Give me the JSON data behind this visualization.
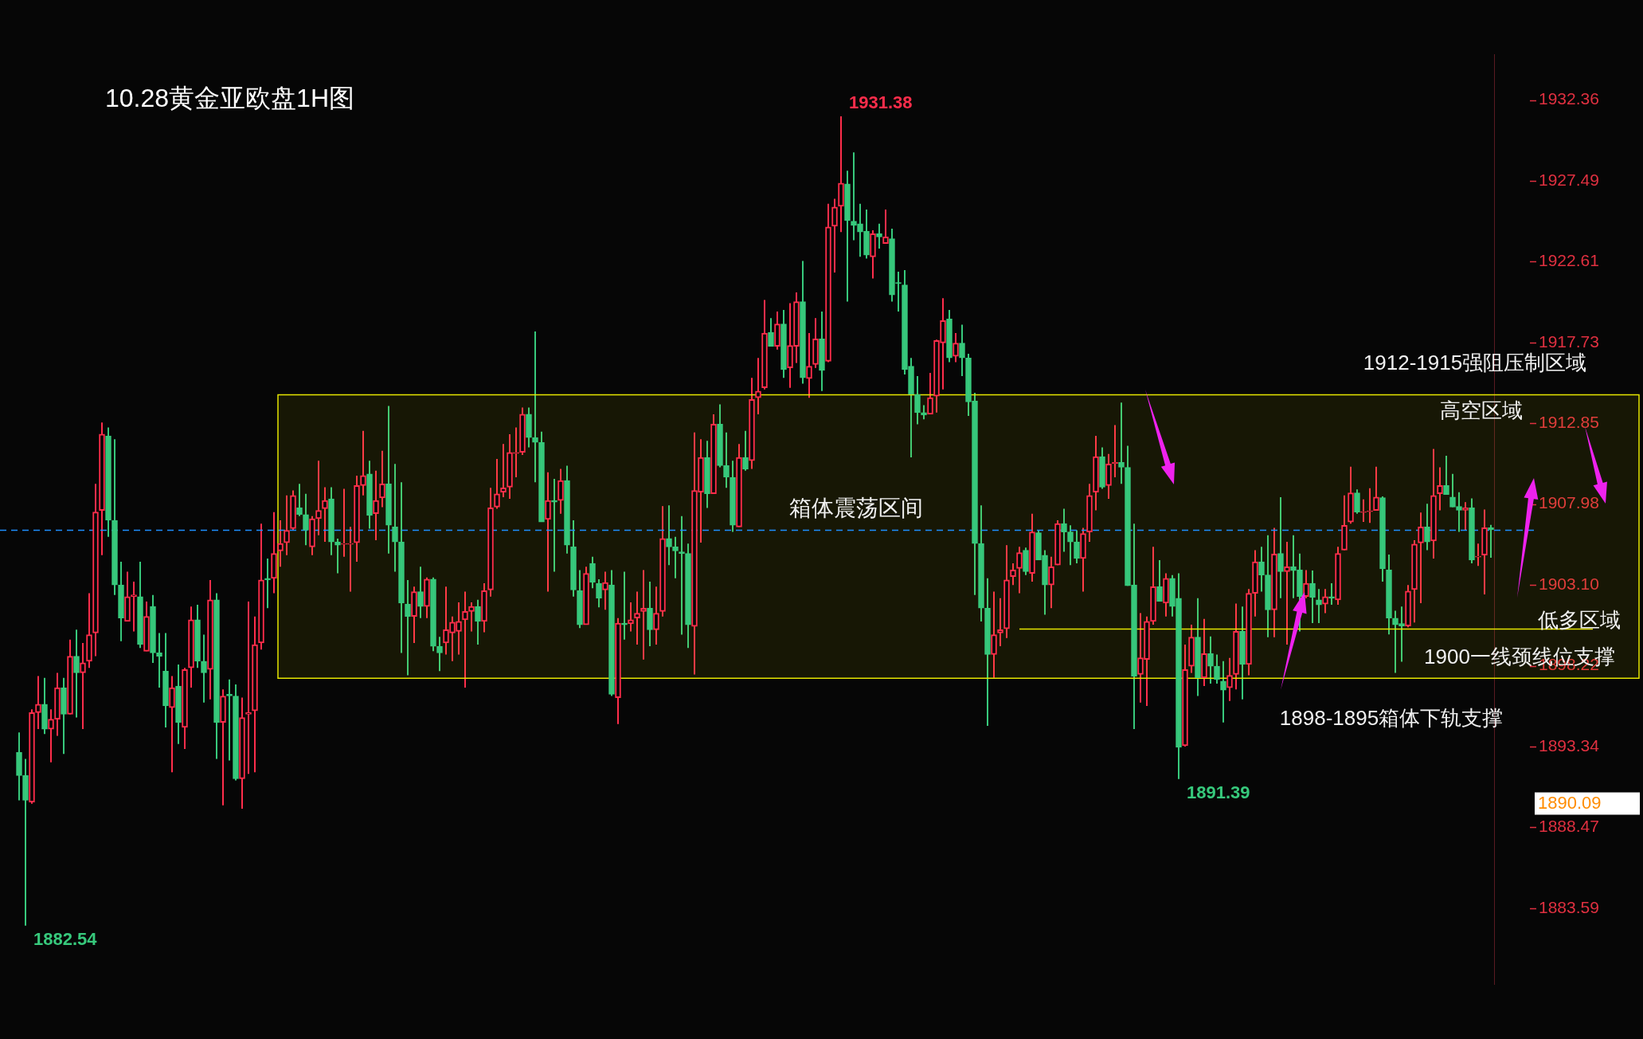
{
  "chart_data": {
    "type": "candlestick",
    "title": "10.28黄金亚欧盘1H图",
    "categories": [
      null,
      null,
      null,
      null,
      null,
      null,
      null,
      null,
      null,
      null,
      null,
      null,
      null,
      null,
      null,
      null,
      null,
      null,
      null,
      null,
      null,
      null,
      null,
      null,
      null,
      null,
      null,
      null,
      null,
      null,
      null,
      null,
      null,
      null,
      null,
      null,
      null,
      null,
      null,
      null,
      null,
      null,
      null,
      null,
      null,
      null,
      null,
      null,
      null,
      null,
      null,
      null,
      null,
      null,
      null,
      null,
      null,
      null,
      null,
      null,
      null,
      null,
      null,
      null,
      null,
      null,
      null,
      null,
      null,
      null,
      null,
      null,
      null,
      null,
      null,
      null,
      null,
      null,
      null,
      null,
      null,
      null,
      null,
      null,
      null,
      null,
      null,
      null,
      null,
      null,
      null,
      null,
      null,
      null,
      null,
      null,
      null,
      null,
      null,
      null,
      null,
      null,
      null,
      null,
      null,
      null,
      null,
      null,
      null,
      null,
      null,
      null,
      null,
      null,
      null,
      null,
      null,
      null,
      null,
      null,
      null,
      null,
      null,
      null,
      null,
      null,
      null,
      null,
      null,
      null,
      null,
      null,
      null,
      null,
      null,
      null,
      null,
      null,
      null,
      null,
      null,
      null,
      null,
      null,
      null,
      null,
      null,
      null,
      null,
      null,
      null,
      null,
      null,
      null,
      null,
      null,
      null,
      null,
      null,
      null,
      null,
      null,
      null,
      null,
      null,
      null,
      null,
      null,
      null,
      null,
      null,
      null,
      null,
      null,
      null,
      null,
      null,
      null,
      null,
      null,
      null,
      null,
      null,
      null,
      null,
      null,
      null,
      null,
      null,
      null,
      null,
      null,
      null,
      null,
      null,
      null,
      null,
      null,
      null,
      null,
      null,
      null,
      null,
      null,
      null,
      null,
      null,
      null,
      null,
      null,
      null,
      null,
      null,
      null,
      null,
      null,
      null,
      null,
      null,
      null,
      null,
      null,
      null,
      null,
      null,
      null,
      null,
      null,
      null,
      null,
      null,
      null
    ],
    "ohlc": [
      [
        1893.0,
        1894.2,
        1890.1,
        1891.6
      ],
      [
        1891.6,
        1892.6,
        1882.54,
        1890.1
      ],
      [
        1890.0,
        1895.6,
        1889.9,
        1895.4
      ],
      [
        1895.4,
        1897.6,
        1894.4,
        1895.9
      ],
      [
        1895.9,
        1897.5,
        1894.1,
        1894.4
      ],
      [
        1894.4,
        1895.6,
        1892.4,
        1895.0
      ],
      [
        1895.0,
        1897.8,
        1894.0,
        1896.9
      ],
      [
        1896.9,
        1897.5,
        1892.9,
        1895.3
      ],
      [
        1895.3,
        1899.8,
        1895.3,
        1898.8
      ],
      [
        1898.8,
        1900.4,
        1895.1,
        1897.8
      ],
      [
        1897.8,
        1899.6,
        1894.4,
        1898.4
      ],
      [
        1898.5,
        1902.6,
        1898.1,
        1900.1
      ],
      [
        1900.2,
        1909.2,
        1898.8,
        1907.5
      ],
      [
        1907.6,
        1912.9,
        1904.9,
        1912.2
      ],
      [
        1912.1,
        1912.6,
        1906.0,
        1907.0
      ],
      [
        1907.0,
        1911.9,
        1902.5,
        1903.1
      ],
      [
        1903.1,
        1904.5,
        1899.7,
        1901.1
      ],
      [
        1900.9,
        1903.9,
        1900.9,
        1902.4
      ],
      [
        1902.4,
        1903.3,
        1900.3,
        1902.5
      ],
      [
        1902.4,
        1904.5,
        1899.3,
        1899.5
      ],
      [
        1899.1,
        1902.1,
        1899.1,
        1901.2
      ],
      [
        1901.8,
        1902.5,
        1898.4,
        1899.0
      ],
      [
        1899.0,
        1900.2,
        1896.9,
        1898.8
      ],
      [
        1897.9,
        1900.2,
        1894.5,
        1895.8
      ],
      [
        1895.7,
        1897.6,
        1891.8,
        1896.9
      ],
      [
        1897.0,
        1898.3,
        1893.5,
        1894.8
      ],
      [
        1894.5,
        1898.1,
        1893.2,
        1898.0
      ],
      [
        1898.1,
        1901.8,
        1896.9,
        1901.0
      ],
      [
        1901.0,
        1901.9,
        1898.1,
        1898.5
      ],
      [
        1898.5,
        1900.1,
        1896.0,
        1897.8
      ],
      [
        1898.0,
        1903.4,
        1896.2,
        1902.2
      ],
      [
        1902.2,
        1902.6,
        1892.6,
        1894.8
      ],
      [
        1894.8,
        1896.8,
        1889.8,
        1896.4
      ],
      [
        1896.5,
        1897.4,
        1892.5,
        1896.4
      ],
      [
        1896.4,
        1897.1,
        1891.3,
        1891.4
      ],
      [
        1891.4,
        1896.3,
        1889.6,
        1895.1
      ],
      [
        1895.3,
        1902.1,
        1891.7,
        1895.4
      ],
      [
        1895.5,
        1901.2,
        1891.8,
        1899.5
      ],
      [
        1899.6,
        1906.8,
        1899.2,
        1903.4
      ],
      [
        1903.5,
        1904.7,
        1901.7,
        1903.4
      ],
      [
        1903.5,
        1907.5,
        1902.6,
        1905.0
      ],
      [
        1905.15,
        1907.0,
        1904.2,
        1905.6
      ],
      [
        1905.65,
        1908.5,
        1904.9,
        1906.4
      ],
      [
        1906.5,
        1908.8,
        1906.4,
        1908.5
      ],
      [
        1907.75,
        1909.2,
        1907.25,
        1907.35
      ],
      [
        1907.35,
        1908.6,
        1905.5,
        1906.4
      ],
      [
        1905.4,
        1907.25,
        1904.9,
        1907.1
      ],
      [
        1907.1,
        1910.6,
        1906.1,
        1907.6
      ],
      [
        1907.7,
        1909.0,
        1905.7,
        1908.2
      ],
      [
        1908.3,
        1909.0,
        1904.9,
        1905.7
      ],
      [
        1905.7,
        1905.9,
        1903.8,
        1905.5
      ],
      [
        1905.55,
        1908.9,
        1904.8,
        1905.6
      ],
      [
        1905.55,
        1906.6,
        1902.7,
        1905.6
      ],
      [
        1905.65,
        1909.7,
        1904.5,
        1909.1
      ],
      [
        1909.1,
        1912.4,
        1908.5,
        1909.7
      ],
      [
        1909.8,
        1910.6,
        1906.5,
        1907.3
      ],
      [
        1907.4,
        1910.0,
        1905.8,
        1908.2
      ],
      [
        1908.35,
        1911.2,
        1907.8,
        1909.2
      ],
      [
        1909.2,
        1913.9,
        1905.0,
        1906.7
      ],
      [
        1906.6,
        1910.4,
        1903.9,
        1905.7
      ],
      [
        1905.7,
        1909.3,
        1899.0,
        1902.0
      ],
      [
        1901.95,
        1903.4,
        1897.65,
        1901.2
      ],
      [
        1901.2,
        1903.0,
        1899.6,
        1902.7
      ],
      [
        1902.7,
        1904.2,
        1901.1,
        1901.8
      ],
      [
        1901.8,
        1903.55,
        1901.1,
        1903.45
      ],
      [
        1903.45,
        1903.55,
        1899.1,
        1899.4
      ],
      [
        1899.4,
        1899.97,
        1897.9,
        1899.0
      ],
      [
        1899.6,
        1903.0,
        1898.9,
        1900.4
      ],
      [
        1900.2,
        1901.2,
        1898.5,
        1900.85
      ],
      [
        1900.3,
        1902.05,
        1898.9,
        1900.9
      ],
      [
        1901.0,
        1902.7,
        1896.9,
        1901.5
      ],
      [
        1901.5,
        1902.05,
        1900.3,
        1901.8
      ],
      [
        1901.8,
        1902.2,
        1899.5,
        1900.9
      ],
      [
        1900.9,
        1903.2,
        1900.25,
        1902.75
      ],
      [
        1902.8,
        1908.96,
        1902.4,
        1907.75
      ],
      [
        1907.8,
        1910.7,
        1907.7,
        1908.6
      ],
      [
        1908.7,
        1911.6,
        1908.4,
        1908.96
      ],
      [
        1909.0,
        1912.2,
        1908.3,
        1911.1
      ],
      [
        1911.03,
        1912.6,
        1909.6,
        1911.1
      ],
      [
        1911.1,
        1913.8,
        1910.95,
        1913.4
      ],
      [
        1913.4,
        1913.8,
        1911.4,
        1912.0
      ],
      [
        1912.0,
        1918.4,
        1909.3,
        1911.7
      ],
      [
        1911.7,
        1912.35,
        1906.9,
        1906.9
      ],
      [
        1907.05,
        1909.9,
        1902.7,
        1908.2
      ],
      [
        1908.2,
        1909.5,
        1903.9,
        1908.1
      ],
      [
        1908.2,
        1910.1,
        1907.4,
        1909.4
      ],
      [
        1909.4,
        1910.3,
        1905.0,
        1905.5
      ],
      [
        1905.4,
        1907.0,
        1902.4,
        1902.8
      ],
      [
        1902.75,
        1904.0,
        1900.5,
        1900.7
      ],
      [
        1900.7,
        1904.2,
        1900.7,
        1903.8
      ],
      [
        1904.4,
        1904.8,
        1902.9,
        1903.25
      ],
      [
        1903.2,
        1903.45,
        1901.75,
        1902.3
      ],
      [
        1902.8,
        1903.9,
        1901.6,
        1903.25
      ],
      [
        1903.1,
        1904.0,
        1896.4,
        1896.5
      ],
      [
        1896.3,
        1901.1,
        1894.7,
        1900.8
      ],
      [
        1900.8,
        1903.9,
        1899.8,
        1900.7
      ],
      [
        1900.75,
        1902.05,
        1900.3,
        1901.0
      ],
      [
        1901.1,
        1902.7,
        1899.5,
        1901.4
      ],
      [
        1901.5,
        1904.0,
        1898.6,
        1901.7
      ],
      [
        1901.7,
        1903.3,
        1899.4,
        1900.4
      ],
      [
        1900.4,
        1903.0,
        1899.5,
        1901.4
      ],
      [
        1901.5,
        1907.85,
        1901.2,
        1905.9
      ],
      [
        1905.9,
        1907.9,
        1904.3,
        1905.4
      ],
      [
        1905.4,
        1906.0,
        1903.5,
        1905.15
      ],
      [
        1905.1,
        1907.25,
        1900.1,
        1905.0
      ],
      [
        1905.0,
        1905.6,
        1899.3,
        1900.7
      ],
      [
        1900.6,
        1912.3,
        1897.7,
        1908.8
      ],
      [
        1908.7,
        1911.9,
        1905.65,
        1910.8
      ],
      [
        1910.8,
        1911.8,
        1907.75,
        1908.6
      ],
      [
        1908.6,
        1913.4,
        1908.6,
        1912.8
      ],
      [
        1912.8,
        1914.0,
        1910.2,
        1910.3
      ],
      [
        1910.3,
        1912.3,
        1908.96,
        1909.6
      ],
      [
        1909.6,
        1910.6,
        1906.3,
        1906.7
      ],
      [
        1906.6,
        1911.6,
        1906.6,
        1910.8
      ],
      [
        1910.8,
        1912.4,
        1910.0,
        1910.1
      ],
      [
        1910.6,
        1915.6,
        1910.1,
        1914.3
      ],
      [
        1914.4,
        1916.8,
        1913.4,
        1914.8
      ],
      [
        1915.0,
        1920.3,
        1914.9,
        1918.3
      ],
      [
        1918.35,
        1919.2,
        1917.5,
        1917.5
      ],
      [
        1917.5,
        1919.6,
        1917.3,
        1918.85
      ],
      [
        1918.85,
        1919.7,
        1915.6,
        1916.1
      ],
      [
        1916.2,
        1920.1,
        1915.0,
        1917.55
      ],
      [
        1917.5,
        1920.75,
        1916.5,
        1920.2
      ],
      [
        1920.2,
        1922.65,
        1915.25,
        1915.6
      ],
      [
        1915.55,
        1918.3,
        1914.4,
        1916.3
      ],
      [
        1916.4,
        1919.2,
        1916.2,
        1917.95
      ],
      [
        1917.95,
        1919.6,
        1914.8,
        1916.05
      ],
      [
        1916.6,
        1926.1,
        1916.55,
        1924.7
      ],
      [
        1924.75,
        1926.4,
        1921.95,
        1925.9
      ],
      [
        1925.95,
        1931.38,
        1924.4,
        1927.35
      ],
      [
        1927.3,
        1928.1,
        1920.2,
        1925.1
      ],
      [
        1925.05,
        1929.2,
        1923.9,
        1924.8
      ],
      [
        1924.9,
        1926.1,
        1922.9,
        1924.4
      ],
      [
        1924.45,
        1925.75,
        1922.8,
        1923.0
      ],
      [
        1922.9,
        1924.5,
        1921.6,
        1924.3
      ],
      [
        1924.3,
        1924.9,
        1923.4,
        1924.1
      ],
      [
        1923.7,
        1925.75,
        1923.7,
        1924.1
      ],
      [
        1924.0,
        1924.6,
        1920.2,
        1920.6
      ],
      [
        1921.35,
        1922.0,
        1919.6,
        1921.3
      ],
      [
        1921.2,
        1922.1,
        1915.8,
        1916.1
      ],
      [
        1916.3,
        1916.8,
        1910.8,
        1914.6
      ],
      [
        1914.6,
        1915.7,
        1912.8,
        1913.5
      ],
      [
        1913.5,
        1913.95,
        1913.1,
        1913.35
      ],
      [
        1913.4,
        1915.9,
        1913.4,
        1914.4
      ],
      [
        1914.5,
        1917.9,
        1913.5,
        1917.85
      ],
      [
        1917.7,
        1920.4,
        1914.9,
        1919.05
      ],
      [
        1919.15,
        1919.7,
        1916.55,
        1916.8
      ],
      [
        1916.9,
        1918.3,
        1916.55,
        1917.7
      ],
      [
        1917.7,
        1918.8,
        1915.7,
        1916.8
      ],
      [
        1916.8,
        1917.05,
        1913.3,
        1914.15
      ],
      [
        1914.2,
        1914.7,
        1902.5,
        1905.6
      ],
      [
        1905.6,
        1907.9,
        1900.9,
        1901.7
      ],
      [
        1901.7,
        1903.5,
        1894.6,
        1898.9
      ],
      [
        1898.9,
        1902.7,
        1897.5,
        1900.1
      ],
      [
        1900.2,
        1902.3,
        1899.4,
        1900.4
      ],
      [
        1900.45,
        1905.5,
        1899.9,
        1903.4
      ],
      [
        1903.6,
        1904.4,
        1903.1,
        1904.0
      ],
      [
        1904.1,
        1905.4,
        1902.6,
        1905.05
      ],
      [
        1905.2,
        1905.35,
        1903.7,
        1903.9
      ],
      [
        1903.8,
        1907.4,
        1903.3,
        1906.3
      ],
      [
        1906.25,
        1906.4,
        1904.6,
        1904.6
      ],
      [
        1904.9,
        1905.2,
        1901.3,
        1903.1
      ],
      [
        1903.1,
        1904.8,
        1901.7,
        1904.2
      ],
      [
        1904.3,
        1907.0,
        1904.3,
        1906.8
      ],
      [
        1906.8,
        1907.7,
        1905.1,
        1906.3
      ],
      [
        1906.3,
        1906.7,
        1904.3,
        1905.7
      ],
      [
        1905.7,
        1906.4,
        1904.4,
        1904.7
      ],
      [
        1904.7,
        1906.55,
        1902.7,
        1906.2
      ],
      [
        1906.3,
        1909.2,
        1905.7,
        1908.5
      ],
      [
        1908.7,
        1912.1,
        1907.6,
        1910.85
      ],
      [
        1910.85,
        1911.4,
        1908.9,
        1909.0
      ],
      [
        1909.1,
        1911.0,
        1908.3,
        1910.4
      ],
      [
        1910.43,
        1912.75,
        1909.6,
        1910.5
      ],
      [
        1910.5,
        1914.1,
        1909.2,
        1910.2
      ],
      [
        1910.2,
        1911.5,
        1903.05,
        1903.05
      ],
      [
        1903.1,
        1906.8,
        1894.4,
        1897.6
      ],
      [
        1897.7,
        1901.4,
        1896.0,
        1898.7
      ],
      [
        1898.6,
        1901.2,
        1895.8,
        1900.9
      ],
      [
        1900.9,
        1905.4,
        1900.7,
        1903.0
      ],
      [
        1903.0,
        1904.6,
        1902.1,
        1902.1
      ],
      [
        1902.0,
        1903.8,
        1901.2,
        1903.5
      ],
      [
        1903.5,
        1903.7,
        1901.2,
        1901.8
      ],
      [
        1902.3,
        1903.8,
        1891.39,
        1893.3
      ],
      [
        1893.4,
        1899.5,
        1893.35,
        1898.0
      ],
      [
        1898.2,
        1900.7,
        1897.8,
        1899.96
      ],
      [
        1899.96,
        1902.3,
        1896.4,
        1897.5
      ],
      [
        1897.5,
        1901.05,
        1897.0,
        1898.96
      ],
      [
        1898.96,
        1900.0,
        1897.15,
        1898.2
      ],
      [
        1898.2,
        1898.9,
        1897.15,
        1897.4
      ],
      [
        1897.3,
        1898.5,
        1894.8,
        1896.75
      ],
      [
        1896.9,
        1898.7,
        1896.1,
        1897.65
      ],
      [
        1897.7,
        1901.98,
        1896.8,
        1900.3
      ],
      [
        1900.3,
        1901.8,
        1896.2,
        1898.3
      ],
      [
        1898.3,
        1902.85,
        1897.65,
        1902.6
      ],
      [
        1902.6,
        1905.2,
        1901.2,
        1904.5
      ],
      [
        1904.5,
        1905.4,
        1902.7,
        1903.7
      ],
      [
        1903.7,
        1906.1,
        1899.95,
        1901.6
      ],
      [
        1901.6,
        1906.55,
        1899.95,
        1904.97
      ],
      [
        1905.0,
        1908.4,
        1902.3,
        1903.9
      ],
      [
        1903.9,
        1905.7,
        1899.5,
        1904.2
      ],
      [
        1904.2,
        1906.1,
        1902.3,
        1903.97
      ],
      [
        1904.0,
        1905.0,
        1900.3,
        1902.4
      ],
      [
        1902.4,
        1904.0,
        1902.3,
        1903.2
      ],
      [
        1903.2,
        1903.97,
        1900.8,
        1902.35
      ],
      [
        1902.2,
        1902.85,
        1900.8,
        1901.9
      ],
      [
        1901.95,
        1902.85,
        1901.4,
        1902.4
      ],
      [
        1902.4,
        1903.2,
        1901.9,
        1902.3
      ],
      [
        1902.2,
        1905.4,
        1901.9,
        1905.0
      ],
      [
        1905.2,
        1908.5,
        1905.2,
        1906.7
      ],
      [
        1906.9,
        1910.24,
        1906.8,
        1908.66
      ],
      [
        1908.66,
        1908.87,
        1907.4,
        1907.5
      ],
      [
        1907.47,
        1908.27,
        1906.9,
        1907.52
      ],
      [
        1907.52,
        1908.94,
        1906.84,
        1907.57
      ],
      [
        1907.6,
        1910.24,
        1907.6,
        1908.4
      ],
      [
        1908.37,
        1908.44,
        1903.3,
        1904.07
      ],
      [
        1904.0,
        1904.93,
        1900.12,
        1901.1
      ],
      [
        1901.1,
        1901.55,
        1897.8,
        1900.7
      ],
      [
        1900.77,
        1901.8,
        1898.47,
        1900.62
      ],
      [
        1900.62,
        1903.1,
        1900.55,
        1902.73
      ],
      [
        1902.82,
        1905.8,
        1900.84,
        1905.57
      ],
      [
        1905.64,
        1907.47,
        1902.0,
        1906.6
      ],
      [
        1906.6,
        1908.0,
        1905.2,
        1905.7
      ],
      [
        1905.75,
        1911.3,
        1904.7,
        1908.5
      ],
      [
        1908.6,
        1910.2,
        1907.6,
        1909.1
      ],
      [
        1909.1,
        1910.9,
        1908.56,
        1908.56
      ],
      [
        1908.4,
        1909.8,
        1907.8,
        1907.8
      ],
      [
        1907.84,
        1908.7,
        1906.3,
        1907.61
      ],
      [
        1907.61,
        1908.1,
        1906.4,
        1907.75
      ],
      [
        1907.75,
        1908.33,
        1904.4,
        1904.6
      ],
      [
        1904.78,
        1905.6,
        1904.25,
        1904.83
      ],
      [
        1904.9,
        1907.65,
        1902.53,
        1906.55
      ],
      [
        1906.55,
        1906.72,
        1904.74,
        1906.43
      ]
    ],
    "ylim": [
      1879.0,
      1935.1
    ],
    "yticks": [
      1932.36,
      1927.49,
      1922.61,
      1917.73,
      1912.85,
      1907.98,
      {
        "value": 1903.1,
        "label": "1903.10"
      },
      1898.22,
      1893.34,
      1888.47,
      1883.59
    ],
    "tick_labels": "y",
    "ref_lines": [
      {
        "axis": "y",
        "value": 1906.42,
        "color": "#1e8fff",
        "line_style": "dashed"
      },
      {
        "axis": "y",
        "value": 1900.47,
        "label": "1900一线颈线位支撑",
        "color": "#e6e600"
      }
    ],
    "bands": [
      {
        "axis": "y",
        "from": 1897.47,
        "to": 1914.57,
        "label": "箱体震荡区间",
        "color": "#e6e600"
      }
    ],
    "annotations": [
      "1931.38",
      "1891.39",
      "1882.54",
      "1912-1915强阻压制区域",
      "高空区域",
      "低多区域",
      "1898-1895箱体下轨支撑",
      "1890.09"
    ]
  }
}
